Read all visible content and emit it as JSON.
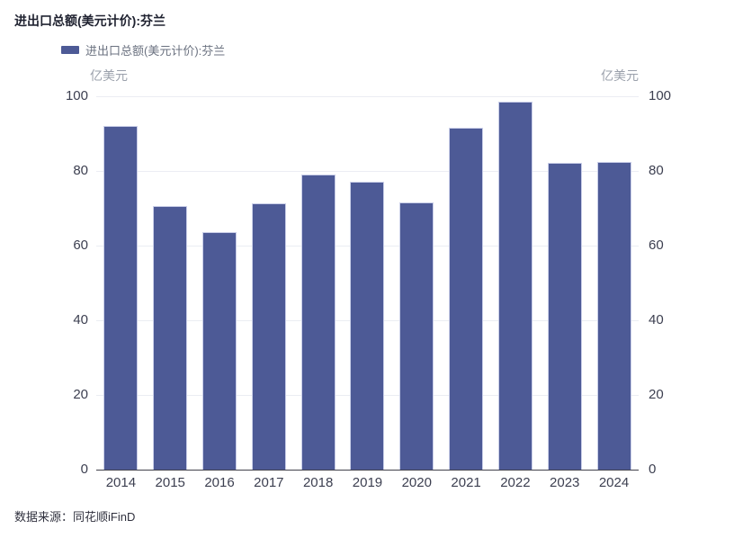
{
  "title": "进出口总额(美元计价):芬兰",
  "legend": {
    "label": "进出口总额(美元计价):芬兰"
  },
  "y_axis": {
    "unit_left": "亿美元",
    "unit_right": "亿美元",
    "ticks": [
      0,
      20,
      40,
      60,
      80,
      100
    ]
  },
  "source": "数据来源：同花顺iFinD",
  "colors": {
    "bar": "#4d5a96",
    "bar_border": "#c9cee8",
    "grid": "#ebedf3",
    "axis": "#42424c",
    "tick_label": "#3c3f50",
    "unit_label": "#9aa0ab",
    "legend_label": "#6b7280",
    "title": "#1f2230",
    "source": "#30313e"
  },
  "chart_data": {
    "type": "bar",
    "categories": [
      "2014",
      "2015",
      "2016",
      "2017",
      "2018",
      "2019",
      "2020",
      "2021",
      "2022",
      "2023",
      "2024"
    ],
    "values": [
      92.0,
      70.6,
      63.5,
      71.4,
      79.0,
      77.2,
      71.6,
      91.5,
      98.6,
      82.2,
      82.3
    ],
    "title": "进出口总额(美元计价):芬兰",
    "xlabel": "",
    "ylabel": "亿美元",
    "ylim": [
      0,
      100
    ],
    "grid": true,
    "legend_position": "top-left",
    "series_name": "进出口总额(美元计价):芬兰"
  }
}
